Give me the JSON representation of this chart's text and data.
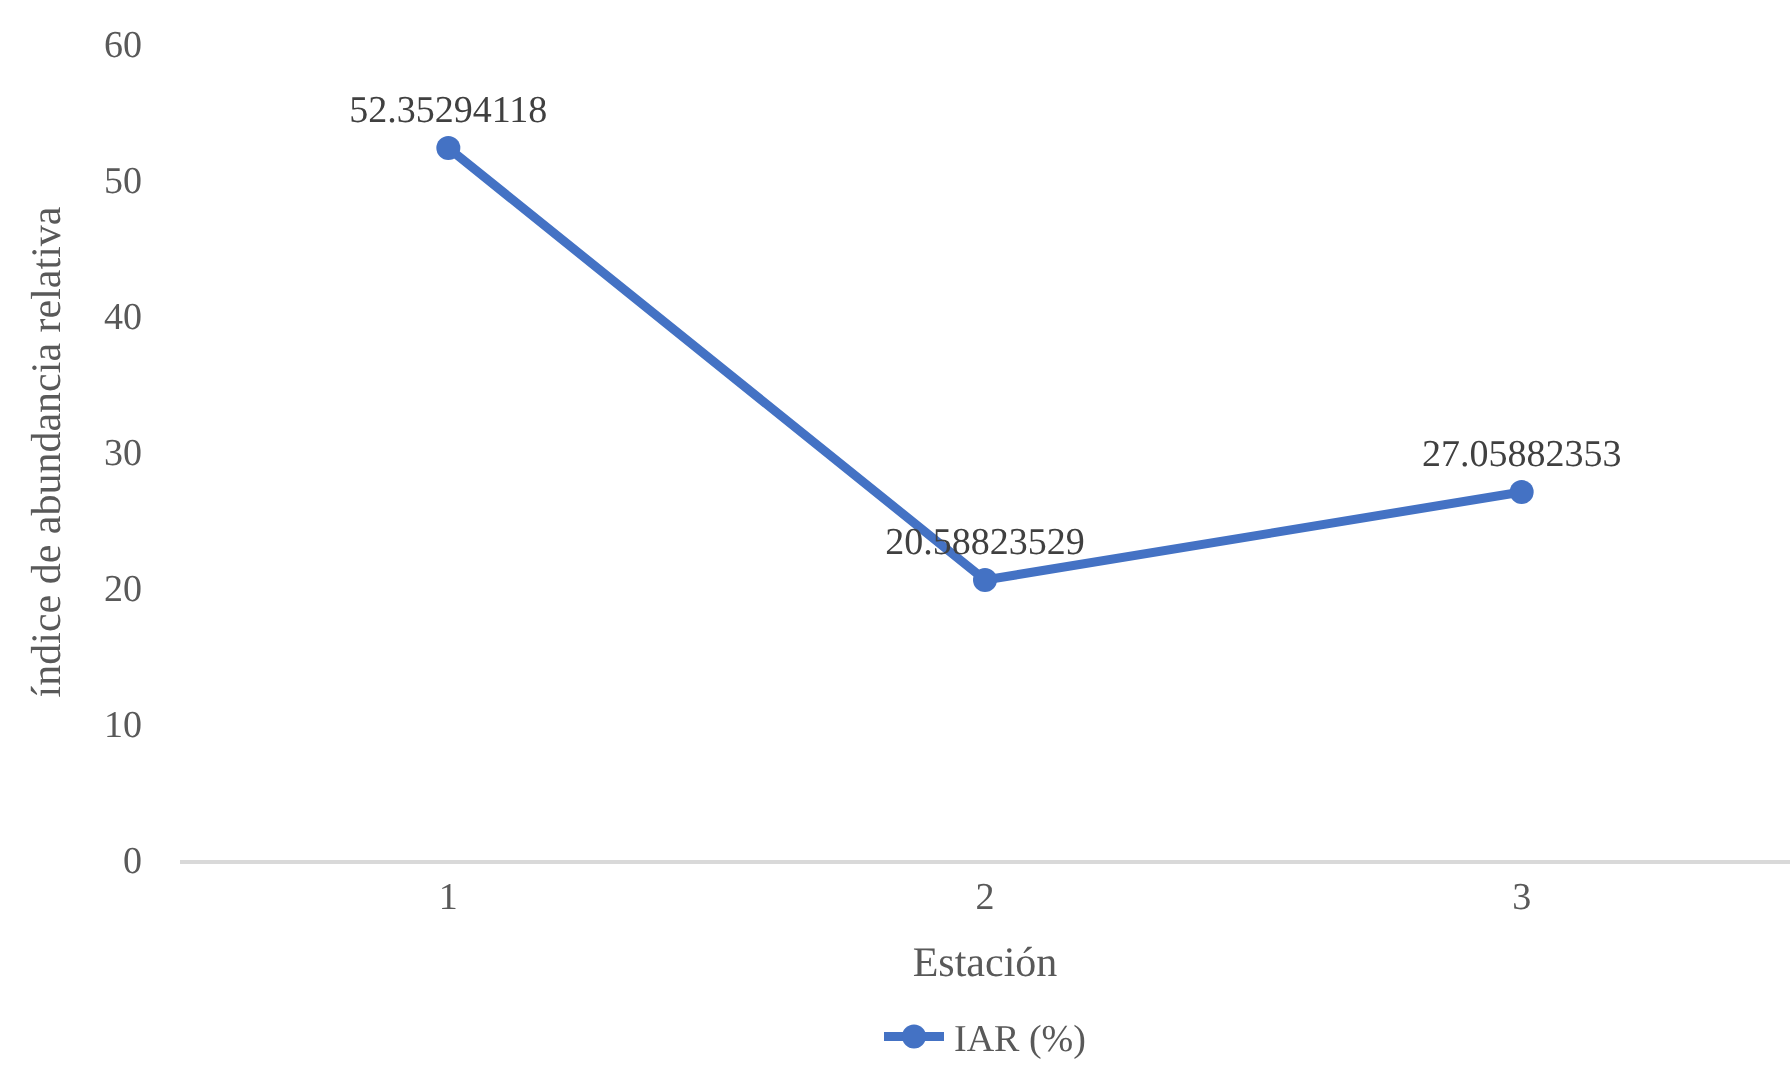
{
  "chart_data": {
    "type": "line",
    "xlabel": "Estación",
    "ylabel": "índice de abundancia relativa",
    "categories": [
      "1",
      "2",
      "3"
    ],
    "series": [
      {
        "name": "IAR (%)",
        "color": "#4472c4",
        "values": [
          52.35294118,
          20.58823529,
          27.05882353
        ]
      }
    ],
    "ylim": [
      0,
      60
    ],
    "yticks": [
      0,
      10,
      20,
      30,
      40,
      50,
      60
    ],
    "data_labels": true,
    "grid": false,
    "legend": "bottom",
    "marker": "circle",
    "line_style": "solid"
  }
}
